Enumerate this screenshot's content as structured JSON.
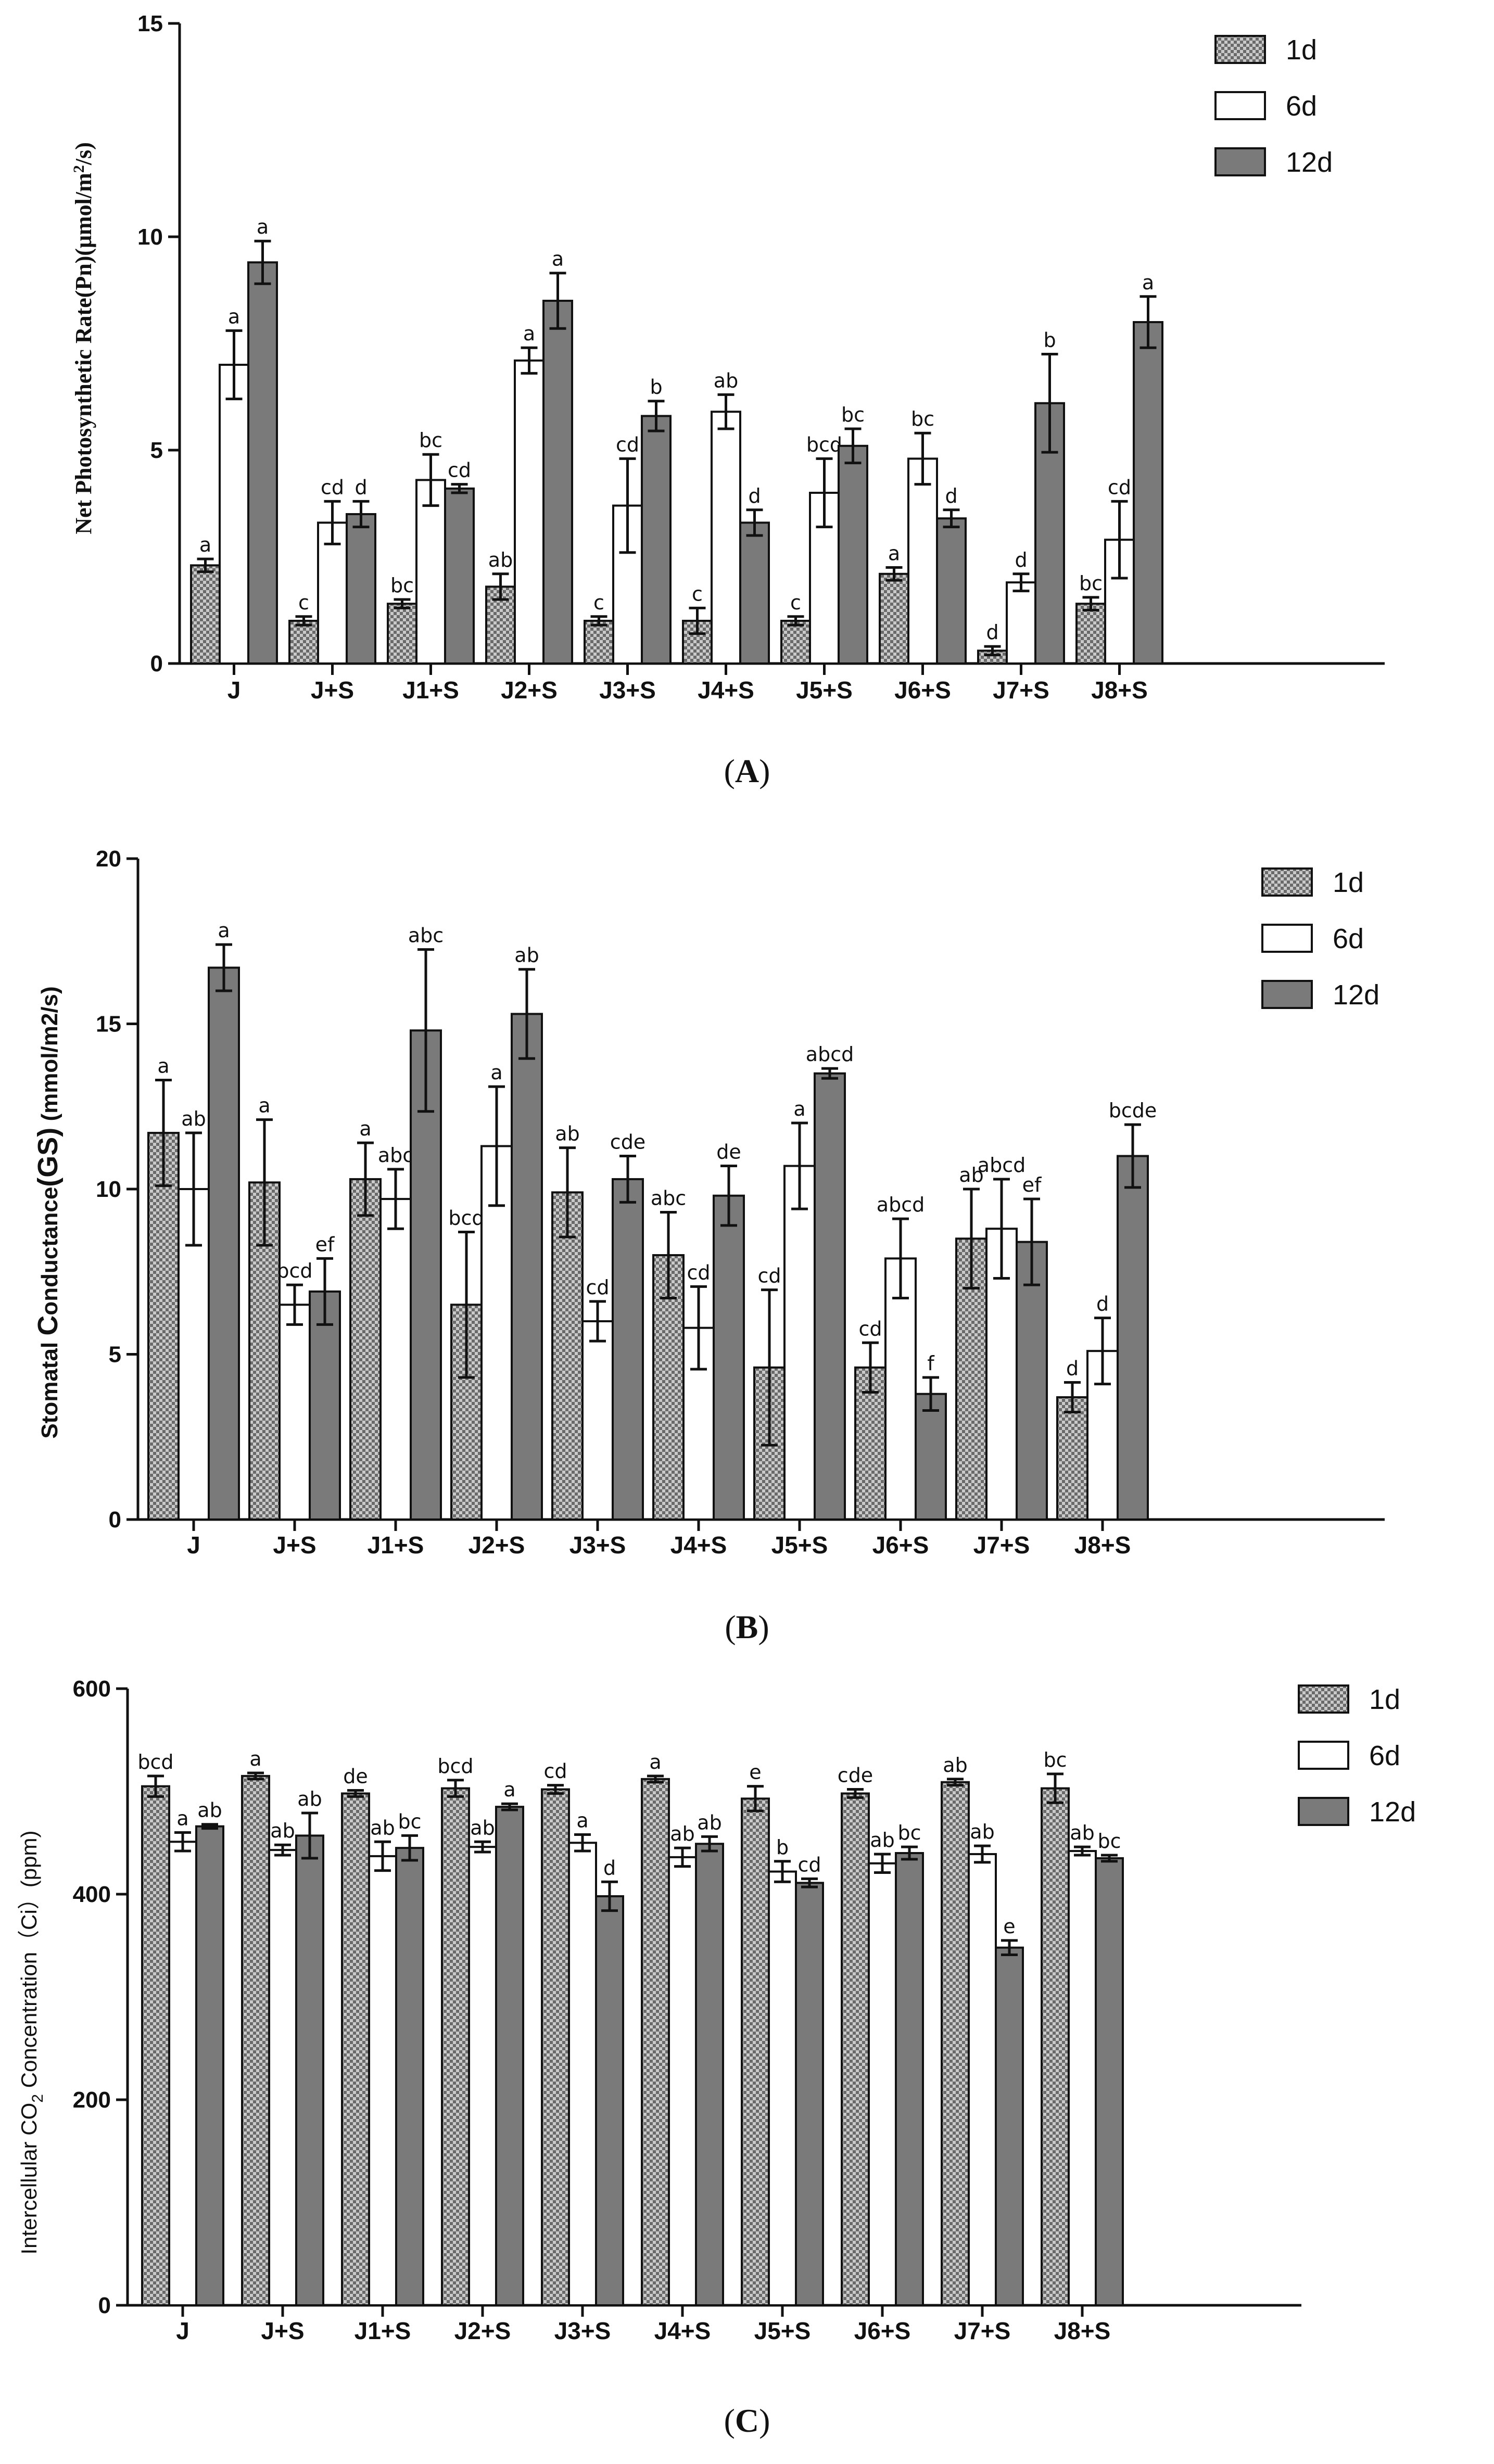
{
  "colors": {
    "d1": "#b8b8b8",
    "d6": "#ffffff",
    "d12": "#7a7a7a",
    "stroke": "#111111"
  },
  "legend": [
    "1d",
    "6d",
    "12d"
  ],
  "panels": [
    {
      "open": "(",
      "letter": "A",
      "close": ")"
    },
    {
      "open": "(",
      "letter": "B",
      "close": ")"
    },
    {
      "open": "(",
      "letter": "C",
      "close": ")"
    }
  ],
  "chart_data": [
    {
      "type": "bar",
      "panel": "A",
      "ylabel_parts": [
        "Net Photosynthetic Rate(Pn)(μmol/m",
        "2",
        "/s)"
      ],
      "ylim": [
        0,
        15
      ],
      "yticks": [
        "0",
        "5",
        "10",
        "15"
      ],
      "categories": [
        "J",
        "J+S",
        "J1+S",
        "J2+S",
        "J3+S",
        "J4+S",
        "J5+S",
        "J6+S",
        "J7+S",
        "J8+S"
      ],
      "series": [
        {
          "name": "1d",
          "values": [
            2.3,
            1.0,
            1.4,
            1.8,
            1.0,
            1.0,
            1.0,
            2.1,
            0.3,
            1.4
          ],
          "errors": [
            0.15,
            0.1,
            0.1,
            0.3,
            0.1,
            0.3,
            0.1,
            0.15,
            0.1,
            0.15
          ],
          "labels": [
            "a",
            "c",
            "bc",
            "ab",
            "c",
            "c",
            "c",
            "a",
            "d",
            "bc"
          ]
        },
        {
          "name": "6d",
          "values": [
            7.0,
            3.3,
            4.3,
            7.1,
            3.7,
            5.9,
            4.0,
            4.8,
            1.9,
            2.9
          ],
          "errors": [
            0.8,
            0.5,
            0.6,
            0.3,
            1.1,
            0.4,
            0.8,
            0.6,
            0.2,
            0.9
          ],
          "labels": [
            "a",
            "cd",
            "bc",
            "a",
            "cd",
            "ab",
            "bcd",
            "bc",
            "d",
            "cd"
          ]
        },
        {
          "name": "12d",
          "values": [
            9.4,
            3.5,
            4.1,
            8.5,
            5.8,
            3.3,
            5.1,
            3.4,
            6.1,
            8.0
          ],
          "errors": [
            0.5,
            0.3,
            0.1,
            0.65,
            0.35,
            0.3,
            0.4,
            0.2,
            1.15,
            0.6
          ],
          "labels": [
            "a",
            "d",
            "cd",
            "a",
            "b",
            "d",
            "bc",
            "d",
            "b",
            "a"
          ]
        }
      ]
    },
    {
      "type": "bar",
      "panel": "B",
      "ylabel_parts": [
        "Stomatal ",
        "C",
        "onductance",
        "(GS)",
        " (mmol/m2/s)"
      ],
      "ylim": [
        0,
        20
      ],
      "yticks": [
        "0",
        "5",
        "10",
        "15",
        "20"
      ],
      "categories": [
        "J",
        "J+S",
        "J1+S",
        "J2+S",
        "J3+S",
        "J4+S",
        "J5+S",
        "J6+S",
        "J7+S",
        "J8+S"
      ],
      "series": [
        {
          "name": "1d",
          "values": [
            11.7,
            10.2,
            10.3,
            6.5,
            9.9,
            8.0,
            4.6,
            4.6,
            8.5,
            3.7
          ],
          "errors": [
            1.6,
            1.9,
            1.1,
            2.2,
            1.35,
            1.3,
            2.35,
            0.75,
            1.5,
            0.45
          ],
          "labels": [
            "a",
            "a",
            "a",
            "bcd",
            "ab",
            "abc",
            "cd",
            "cd",
            "ab",
            "d"
          ]
        },
        {
          "name": "6d",
          "values": [
            10.0,
            6.5,
            9.7,
            11.3,
            6.0,
            5.8,
            10.7,
            7.9,
            8.8,
            5.1
          ],
          "errors": [
            1.7,
            0.6,
            0.9,
            1.8,
            0.6,
            1.25,
            1.3,
            1.2,
            1.5,
            1.0
          ],
          "labels": [
            "ab",
            "bcd",
            "abc",
            "a",
            "cd",
            "cd",
            "a",
            "abcd",
            "abcd",
            "d"
          ]
        },
        {
          "name": "12d",
          "values": [
            16.7,
            6.9,
            14.8,
            15.3,
            10.3,
            9.8,
            13.5,
            3.8,
            8.4,
            11.0
          ],
          "errors": [
            0.7,
            1.0,
            2.45,
            1.35,
            0.7,
            0.9,
            0.15,
            0.5,
            1.3,
            0.95
          ],
          "labels": [
            "a",
            "ef",
            "abc",
            "ab",
            "cde",
            "de",
            "abcd",
            "f",
            "ef",
            "bcde"
          ]
        }
      ]
    },
    {
      "type": "bar",
      "panel": "C",
      "ylabel_parts": [
        "Intercellular CO",
        "2",
        " Concentration（Ci）(ppm)"
      ],
      "ylim": [
        0,
        600
      ],
      "yticks": [
        "0",
        "200",
        "400",
        "600"
      ],
      "categories": [
        "J",
        "J+S",
        "J1+S",
        "J2+S",
        "J3+S",
        "J4+S",
        "J5+S",
        "J6+S",
        "J7+S",
        "J8+S"
      ],
      "series": [
        {
          "name": "1d",
          "values": [
            505,
            515,
            498,
            503,
            502,
            512,
            493,
            498,
            509,
            503
          ],
          "errors": [
            10,
            3,
            3,
            8,
            4,
            3,
            12,
            4,
            3,
            14
          ],
          "labels": [
            "bcd",
            "a",
            "de",
            "bcd",
            "cd",
            "a",
            "e",
            "cde",
            "ab",
            "bc"
          ]
        },
        {
          "name": "6d",
          "values": [
            451,
            443,
            437,
            446,
            450,
            436,
            422,
            430,
            439,
            442
          ],
          "errors": [
            9,
            5,
            14,
            5,
            8,
            9,
            10,
            9,
            8,
            4
          ],
          "labels": [
            "a",
            "ab",
            "ab",
            "ab",
            "a",
            "ab",
            "b",
            "ab",
            "ab",
            "ab"
          ]
        },
        {
          "name": "12d",
          "values": [
            466,
            457,
            445,
            485,
            398,
            449,
            411,
            440,
            348,
            435
          ],
          "errors": [
            2,
            22,
            12,
            3,
            14,
            7,
            4,
            6,
            7,
            3
          ],
          "labels": [
            "ab",
            "ab",
            "bc",
            "a",
            "d",
            "ab",
            "cd",
            "bc",
            "e",
            "bc"
          ]
        }
      ]
    }
  ]
}
